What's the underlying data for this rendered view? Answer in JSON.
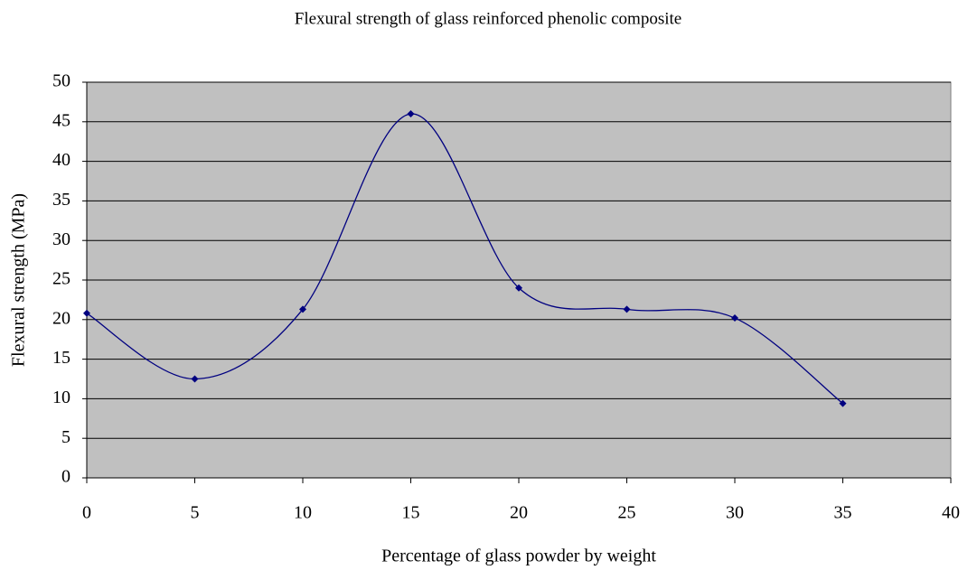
{
  "chart_data": {
    "type": "line",
    "title": "Flexural strength of glass reinforced phenolic composite",
    "x_label": "Percentage of glass powder by weight",
    "y_label": "Flexural strength (MPa)",
    "x": [
      0,
      5,
      10,
      15,
      20,
      25,
      30,
      35
    ],
    "series": [
      {
        "name": "Flexural strength",
        "color": "#000080",
        "values": [
          20.8,
          12.5,
          21.3,
          46,
          24,
          21.3,
          20.2,
          9.4
        ]
      }
    ],
    "xlim": [
      0,
      40
    ],
    "xticks": [
      0,
      5,
      10,
      15,
      20,
      25,
      30,
      35,
      40
    ],
    "ylim": [
      0,
      50
    ],
    "yticks": [
      0,
      5,
      10,
      15,
      20,
      25,
      30,
      35,
      40,
      45,
      50
    ],
    "grid": true,
    "plot_background": "#c0c0c0",
    "smooth": true
  }
}
